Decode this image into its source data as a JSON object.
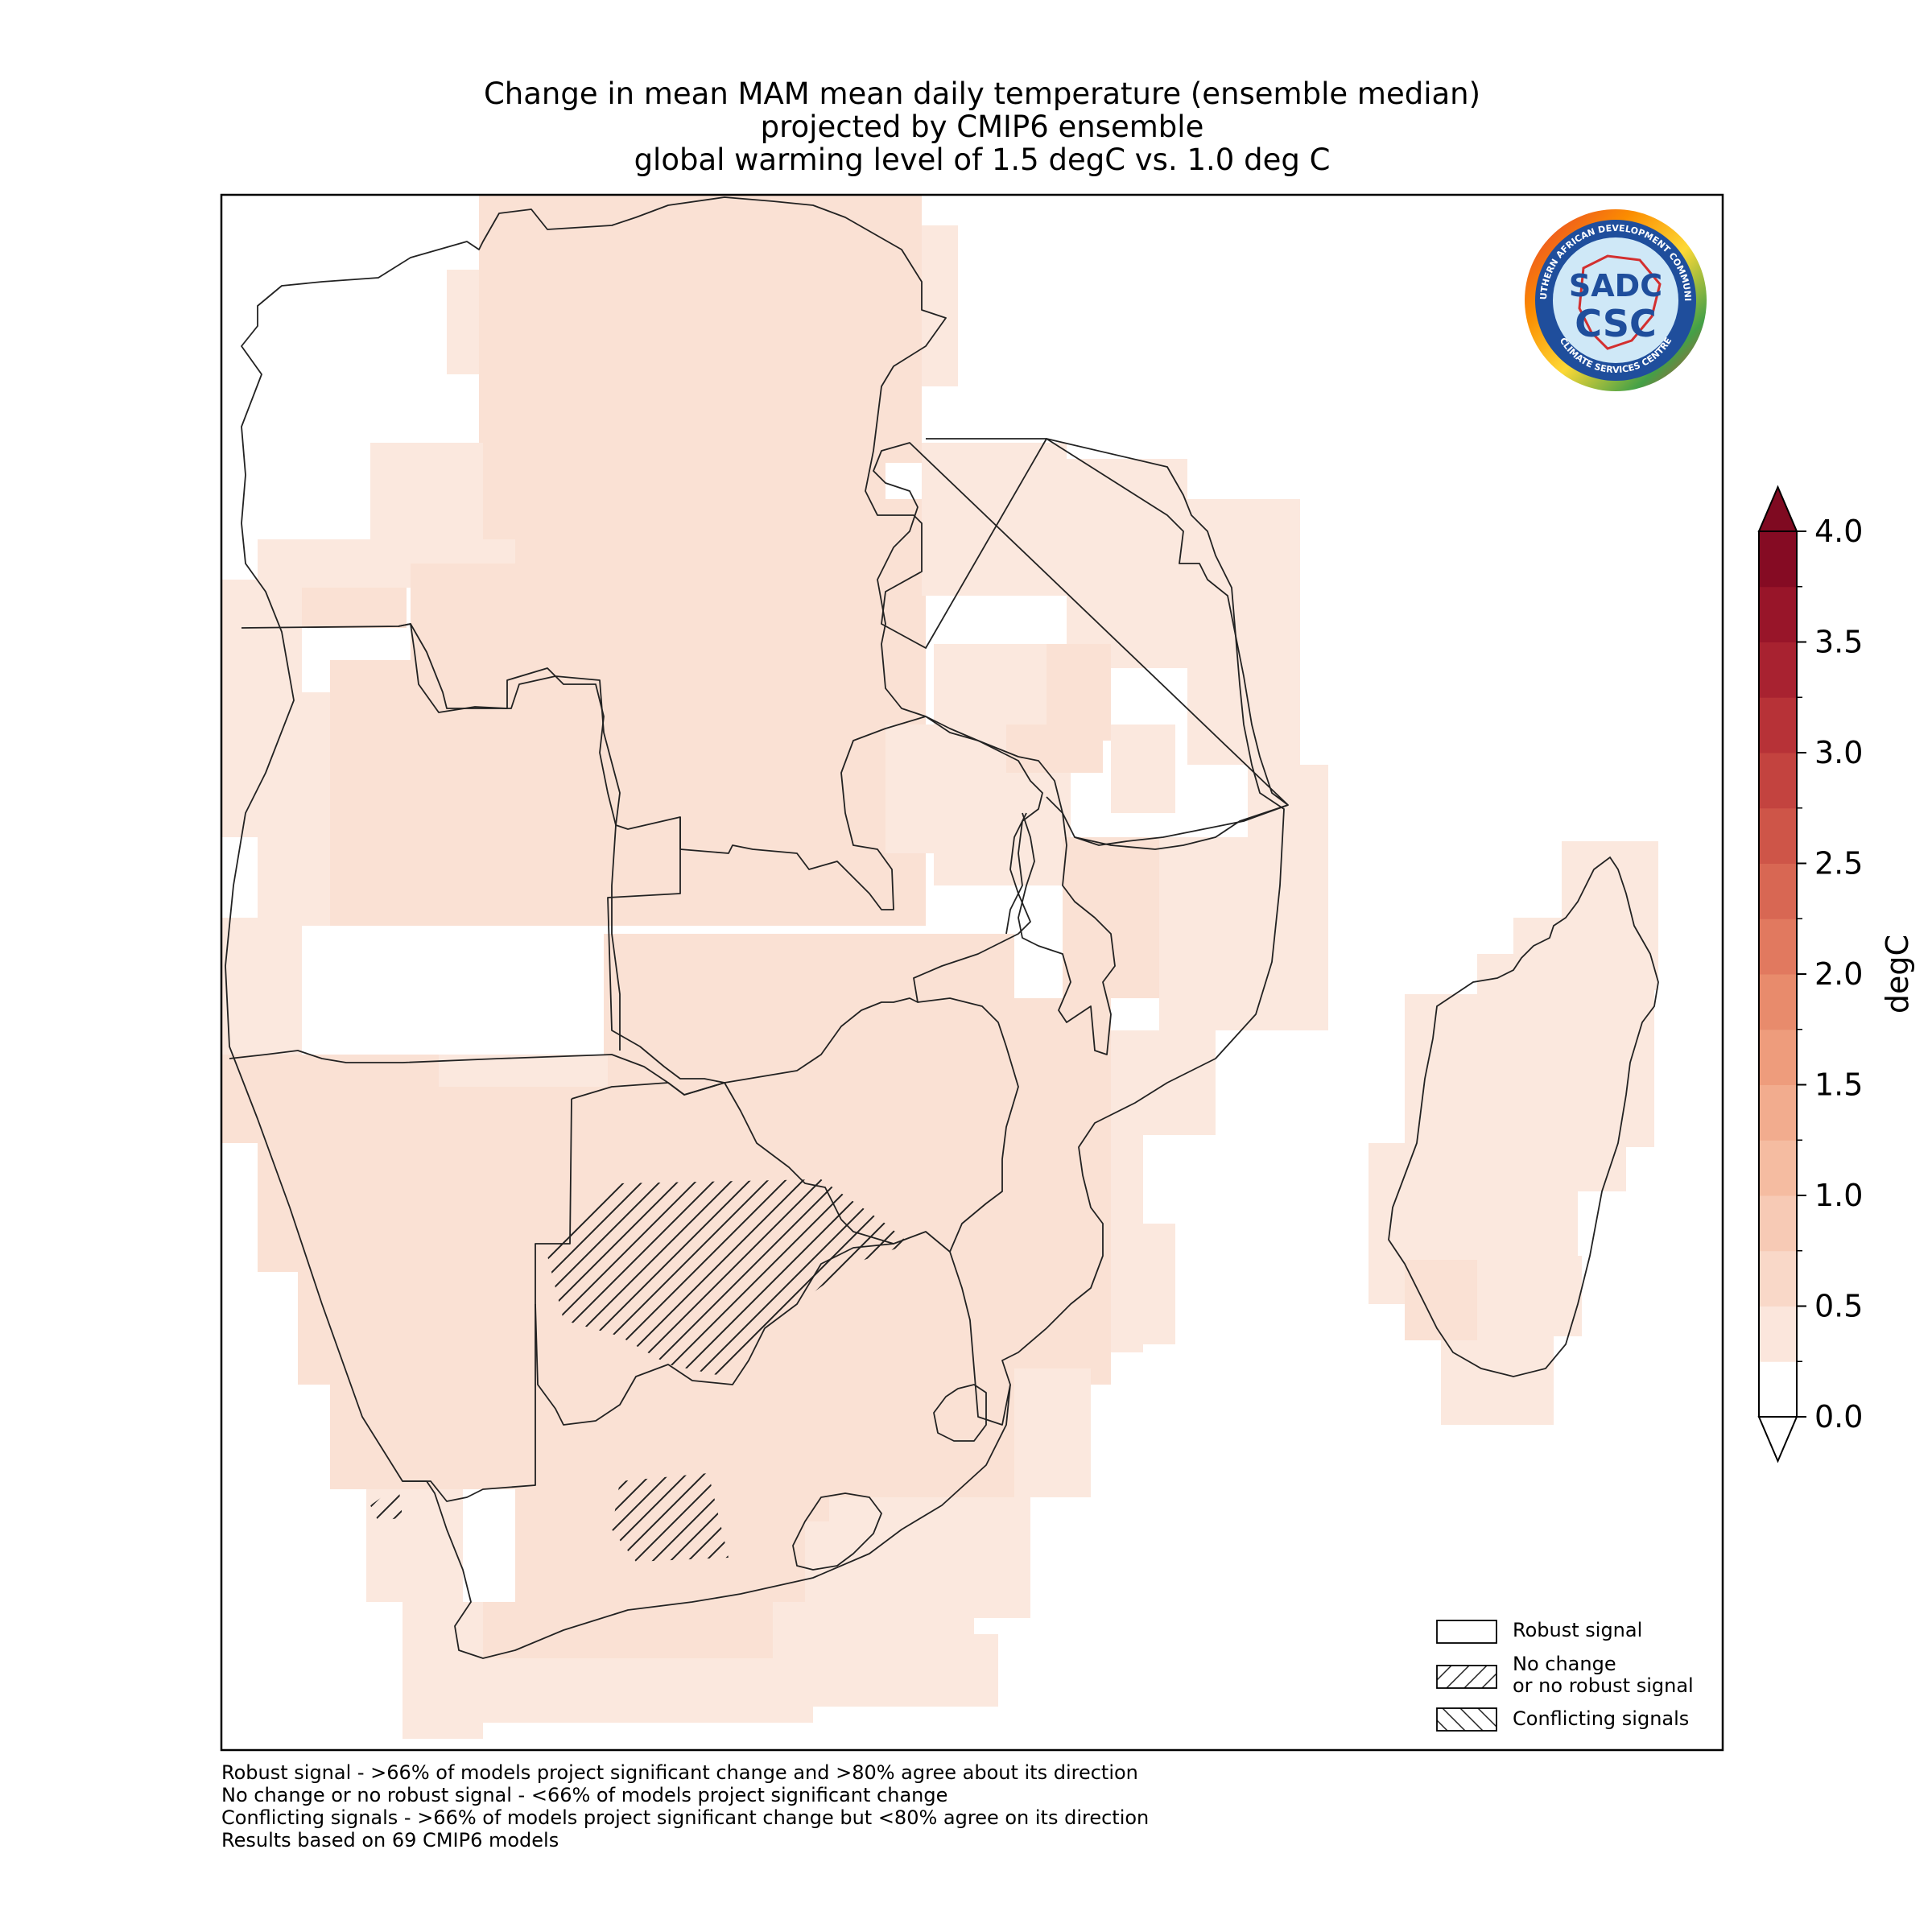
{
  "title_lines": [
    "Change in mean MAM mean daily temperature (ensemble median)",
    "projected by CMIP6 ensemble",
    "global warming level of 1.5 degC vs. 1.0 deg C"
  ],
  "logo": {
    "ring_text_top": "SOUTHERN AFRICAN DEVELOPMENT COMMUNITY",
    "ring_text_bottom": "CLIMATE SERVICES CENTRE",
    "center_top": "SADC",
    "center_bottom": "CSC"
  },
  "colorbar": {
    "label": "degC",
    "ticks": [
      "0.0",
      "0.5",
      "1.0",
      "1.5",
      "2.0",
      "2.5",
      "3.0",
      "3.5",
      "4.0"
    ],
    "range": [
      0.0,
      4.0
    ],
    "step": 0.25,
    "extend": "both",
    "colors": [
      "#ffffff",
      "#fbe6dc",
      "#f9d8c8",
      "#f7cab5",
      "#f5bca1",
      "#f2ac8e",
      "#ee9c7c",
      "#e88b6c",
      "#e1795f",
      "#d86753",
      "#ce5548",
      "#c3433f",
      "#b73237",
      "#a82230",
      "#981529",
      "#850b23"
    ],
    "under_color": "#ffffff",
    "over_color": "#7f0a21"
  },
  "legend": {
    "items": [
      {
        "label_lines": [
          "Robust signal"
        ],
        "pattern": "none"
      },
      {
        "label_lines": [
          "No change",
          "or no robust signal"
        ],
        "pattern": "forward-hatch"
      },
      {
        "label_lines": [
          "Conflicting signals"
        ],
        "pattern": "back-hatch"
      }
    ]
  },
  "footnotes": [
    "Robust signal - >66% of models project significant change and >80% agree about its direction",
    "No change or no robust signal - <66% of models project significant change",
    "Conflicting signals - >66% of models project significant change but <80% agree on its direction",
    "Results based on 69 CMIP6 models"
  ],
  "map_colors": {
    "cell_light": "#fbe8de",
    "cell_main": "#fae1d4",
    "border": "#222222"
  }
}
